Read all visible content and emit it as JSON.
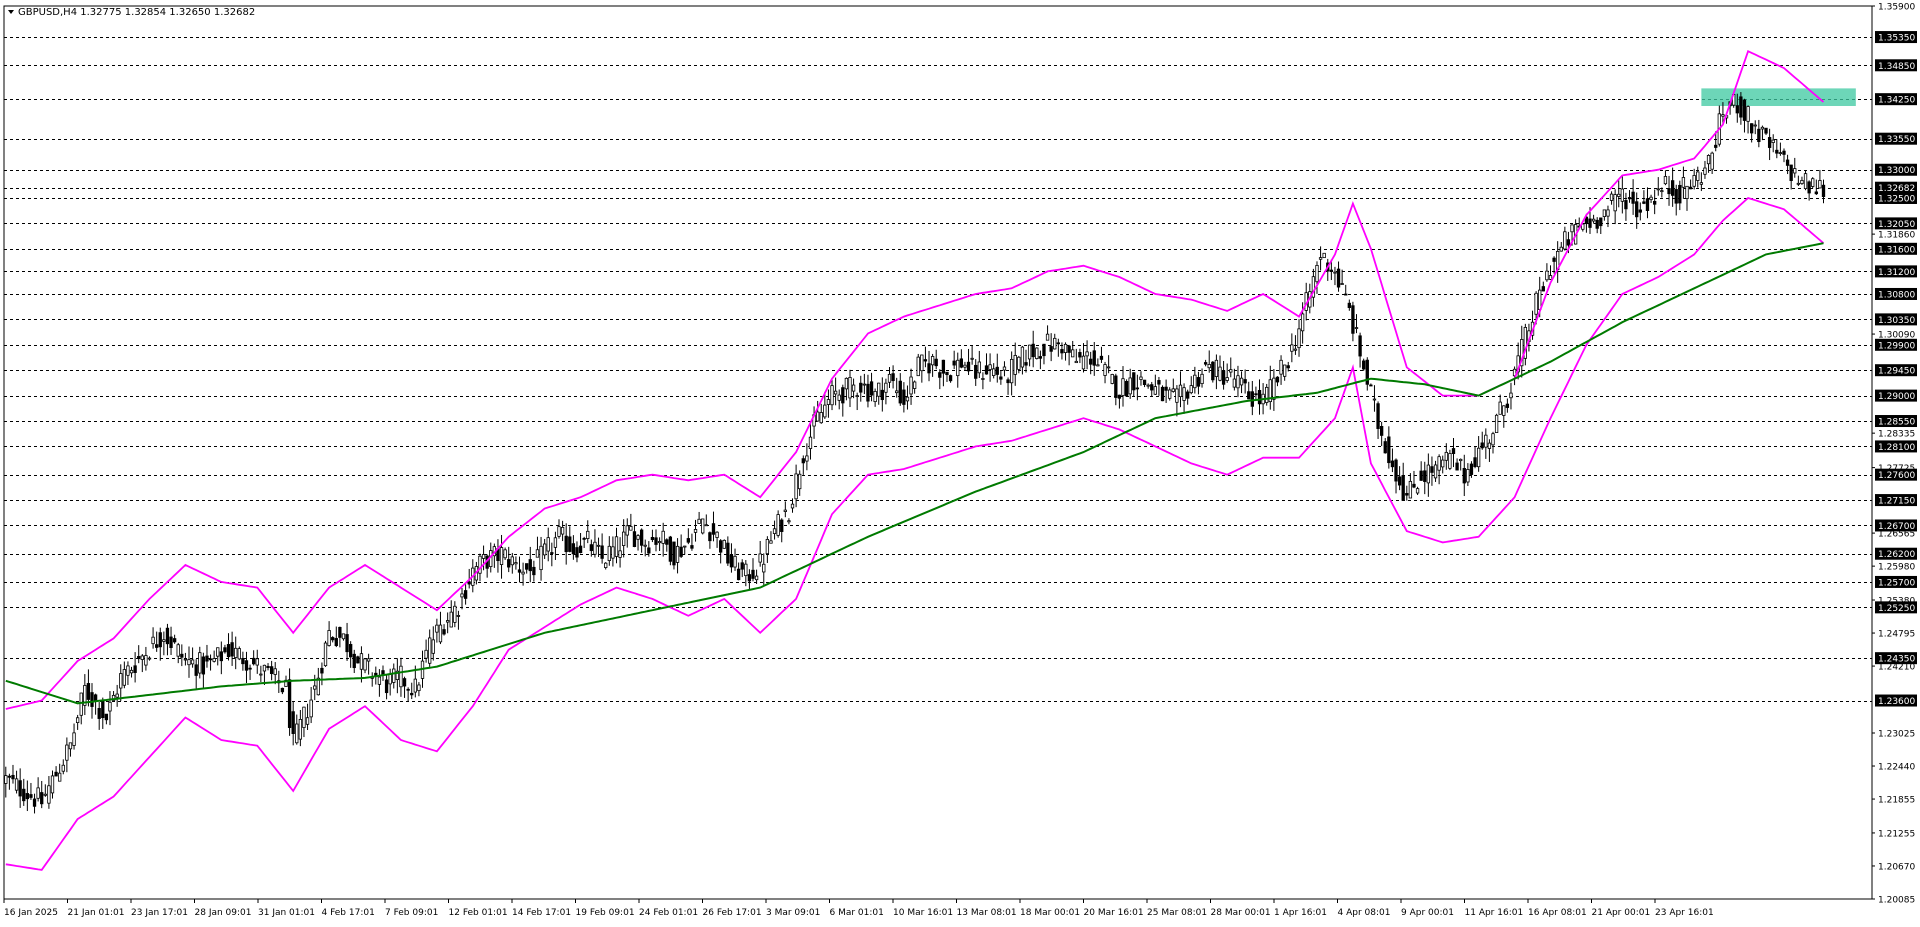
{
  "chart_data": {
    "type": "candlestick",
    "symbol_header": "GBPUSD,H4  1.32775 1.32854 1.32650 1.32682",
    "ylim": [
      1.20085,
      1.359
    ],
    "price_axis_ticks": [
      "1.35900",
      "1.35350",
      "1.34850",
      "1.34250",
      "1.33550",
      "1.33000",
      "1.32682",
      "1.32500",
      "1.32050",
      "1.31860",
      "1.31600",
      "1.31200",
      "1.30800",
      "1.30350",
      "1.30090",
      "1.29900",
      "1.29450",
      "1.29000",
      "1.28550",
      "1.28335",
      "1.28100",
      "1.27725",
      "1.27600",
      "1.27150",
      "1.26700",
      "1.26565",
      "1.26200",
      "1.25980",
      "1.25700",
      "1.25380",
      "1.25250",
      "1.24795",
      "1.24350",
      "1.24210",
      "1.23600",
      "1.23025",
      "1.22440",
      "1.21855",
      "1.21255",
      "1.20670",
      "1.20085"
    ],
    "highlighted_levels": [
      "1.35350",
      "1.34850",
      "1.34250",
      "1.33550",
      "1.33000",
      "1.32682",
      "1.32500",
      "1.32050",
      "1.31600",
      "1.31200",
      "1.30800",
      "1.30350",
      "1.29900",
      "1.29450",
      "1.29000",
      "1.28550",
      "1.28100",
      "1.27600",
      "1.27150",
      "1.26700",
      "1.26200",
      "1.25700",
      "1.25250",
      "1.24350",
      "1.23600"
    ],
    "current_price": "1.32682",
    "time_labels": [
      "16 Jan 2025",
      "21 Jan 01:01",
      "23 Jan 17:01",
      "28 Jan 09:01",
      "31 Jan 01:01",
      "4 Feb 17:01",
      "7 Feb 09:01",
      "12 Feb 01:01",
      "14 Feb 17:01",
      "19 Feb 09:01",
      "24 Feb 01:01",
      "26 Feb 17:01",
      "3 Mar 09:01",
      "6 Mar 01:01",
      "10 Mar 16:01",
      "13 Mar 08:01",
      "18 Mar 00:01",
      "20 Mar 16:01",
      "25 Mar 08:01",
      "28 Mar 00:01",
      "1 Apr 16:01",
      "4 Apr 08:01",
      "9 Apr 00:01",
      "11 Apr 16:01",
      "16 Apr 08:01",
      "21 Apr 00:01",
      "23 Apr 16:01"
    ],
    "close_path": [
      [
        0,
        1.222
      ],
      [
        10,
        1.218
      ],
      [
        18,
        1.228
      ],
      [
        22,
        1.238
      ],
      [
        28,
        1.233
      ],
      [
        32,
        1.24
      ],
      [
        38,
        1.244
      ],
      [
        44,
        1.248
      ],
      [
        50,
        1.243
      ],
      [
        56,
        1.242
      ],
      [
        62,
        1.245
      ],
      [
        68,
        1.243
      ],
      [
        74,
        1.24
      ],
      [
        78,
        1.238
      ],
      [
        80,
        1.228
      ],
      [
        83,
        1.233
      ],
      [
        86,
        1.238
      ],
      [
        90,
        1.248
      ],
      [
        94,
        1.247
      ],
      [
        98,
        1.243
      ],
      [
        102,
        1.241
      ],
      [
        106,
        1.239
      ],
      [
        110,
        1.24
      ],
      [
        114,
        1.238
      ],
      [
        118,
        1.246
      ],
      [
        122,
        1.25
      ],
      [
        126,
        1.253
      ],
      [
        130,
        1.259
      ],
      [
        134,
        1.261
      ],
      [
        138,
        1.262
      ],
      [
        142,
        1.26
      ],
      [
        146,
        1.259
      ],
      [
        150,
        1.262
      ],
      [
        154,
        1.265
      ],
      [
        158,
        1.263
      ],
      [
        162,
        1.264
      ],
      [
        166,
        1.261
      ],
      [
        170,
        1.263
      ],
      [
        174,
        1.266
      ],
      [
        178,
        1.264
      ],
      [
        182,
        1.265
      ],
      [
        186,
        1.262
      ],
      [
        190,
        1.264
      ],
      [
        194,
        1.268
      ],
      [
        198,
        1.265
      ],
      [
        202,
        1.26
      ],
      [
        206,
        1.258
      ],
      [
        210,
        1.26
      ],
      [
        214,
        1.266
      ],
      [
        218,
        1.27
      ],
      [
        222,
        1.28
      ],
      [
        226,
        1.286
      ],
      [
        230,
        1.29
      ],
      [
        234,
        1.291
      ],
      [
        238,
        1.292
      ],
      [
        242,
        1.29
      ],
      [
        246,
        1.293
      ],
      [
        250,
        1.289
      ],
      [
        254,
        1.295
      ],
      [
        258,
        1.296
      ],
      [
        262,
        1.294
      ],
      [
        266,
        1.296
      ],
      [
        270,
        1.294
      ],
      [
        274,
        1.295
      ],
      [
        278,
        1.293
      ],
      [
        282,
        1.296
      ],
      [
        286,
        1.298
      ],
      [
        290,
        1.299
      ],
      [
        294,
        1.299
      ],
      [
        298,
        1.296
      ],
      [
        302,
        1.297
      ],
      [
        306,
        1.294
      ],
      [
        310,
        1.291
      ],
      [
        314,
        1.293
      ],
      [
        318,
        1.292
      ],
      [
        322,
        1.29
      ],
      [
        326,
        1.289
      ],
      [
        330,
        1.292
      ],
      [
        334,
        1.295
      ],
      [
        338,
        1.294
      ],
      [
        342,
        1.293
      ],
      [
        346,
        1.29
      ],
      [
        350,
        1.289
      ],
      [
        354,
        1.293
      ],
      [
        358,
        1.298
      ],
      [
        362,
        1.306
      ],
      [
        366,
        1.315
      ],
      [
        370,
        1.312
      ],
      [
        374,
        1.305
      ],
      [
        378,
        1.295
      ],
      [
        382,
        1.285
      ],
      [
        386,
        1.278
      ],
      [
        390,
        1.272
      ],
      [
        394,
        1.276
      ],
      [
        398,
        1.277
      ],
      [
        402,
        1.279
      ],
      [
        406,
        1.276
      ],
      [
        410,
        1.28
      ],
      [
        414,
        1.284
      ],
      [
        418,
        1.29
      ],
      [
        422,
        1.298
      ],
      [
        426,
        1.306
      ],
      [
        430,
        1.313
      ],
      [
        434,
        1.317
      ],
      [
        438,
        1.32
      ],
      [
        442,
        1.321
      ],
      [
        446,
        1.323
      ],
      [
        450,
        1.326
      ],
      [
        454,
        1.323
      ],
      [
        458,
        1.325
      ],
      [
        462,
        1.327
      ],
      [
        466,
        1.326
      ],
      [
        470,
        1.328
      ],
      [
        474,
        1.331
      ],
      [
        478,
        1.34
      ],
      [
        482,
        1.342
      ],
      [
        486,
        1.338
      ],
      [
        490,
        1.335
      ],
      [
        494,
        1.332
      ],
      [
        498,
        1.329
      ],
      [
        502,
        1.327
      ],
      [
        506,
        1.3268
      ]
    ],
    "sma_path": [
      [
        0,
        1.2395
      ],
      [
        20,
        1.2355
      ],
      [
        40,
        1.237
      ],
      [
        60,
        1.2385
      ],
      [
        80,
        1.2395
      ],
      [
        100,
        1.24
      ],
      [
        120,
        1.242
      ],
      [
        150,
        1.248
      ],
      [
        180,
        1.252
      ],
      [
        210,
        1.256
      ],
      [
        240,
        1.265
      ],
      [
        270,
        1.273
      ],
      [
        300,
        1.28
      ],
      [
        320,
        1.286
      ],
      [
        345,
        1.289
      ],
      [
        365,
        1.2905
      ],
      [
        380,
        1.293
      ],
      [
        395,
        1.292
      ],
      [
        410,
        1.29
      ],
      [
        430,
        1.296
      ],
      [
        450,
        1.303
      ],
      [
        470,
        1.309
      ],
      [
        490,
        1.315
      ],
      [
        506,
        1.317
      ]
    ],
    "band_upper_path": [
      [
        0,
        1.2345
      ],
      [
        10,
        1.236
      ],
      [
        20,
        1.243
      ],
      [
        30,
        1.247
      ],
      [
        40,
        1.254
      ],
      [
        50,
        1.26
      ],
      [
        60,
        1.257
      ],
      [
        70,
        1.256
      ],
      [
        80,
        1.248
      ],
      [
        90,
        1.256
      ],
      [
        100,
        1.26
      ],
      [
        110,
        1.256
      ],
      [
        120,
        1.252
      ],
      [
        130,
        1.258
      ],
      [
        140,
        1.265
      ],
      [
        150,
        1.27
      ],
      [
        160,
        1.272
      ],
      [
        170,
        1.275
      ],
      [
        180,
        1.276
      ],
      [
        190,
        1.275
      ],
      [
        200,
        1.276
      ],
      [
        210,
        1.272
      ],
      [
        220,
        1.28
      ],
      [
        230,
        1.293
      ],
      [
        240,
        1.301
      ],
      [
        250,
        1.304
      ],
      [
        260,
        1.306
      ],
      [
        270,
        1.308
      ],
      [
        280,
        1.309
      ],
      [
        290,
        1.312
      ],
      [
        300,
        1.313
      ],
      [
        310,
        1.311
      ],
      [
        320,
        1.308
      ],
      [
        330,
        1.307
      ],
      [
        340,
        1.305
      ],
      [
        350,
        1.308
      ],
      [
        360,
        1.304
      ],
      [
        370,
        1.315
      ],
      [
        375,
        1.324
      ],
      [
        380,
        1.316
      ],
      [
        390,
        1.295
      ],
      [
        400,
        1.29
      ],
      [
        410,
        1.29
      ],
      [
        420,
        1.293
      ],
      [
        430,
        1.31
      ],
      [
        440,
        1.322
      ],
      [
        450,
        1.329
      ],
      [
        460,
        1.33
      ],
      [
        470,
        1.332
      ],
      [
        478,
        1.338
      ],
      [
        485,
        1.351
      ],
      [
        495,
        1.348
      ],
      [
        506,
        1.342
      ]
    ],
    "band_lower_path": [
      [
        0,
        1.207
      ],
      [
        10,
        1.206
      ],
      [
        20,
        1.215
      ],
      [
        30,
        1.219
      ],
      [
        40,
        1.226
      ],
      [
        50,
        1.233
      ],
      [
        60,
        1.229
      ],
      [
        70,
        1.228
      ],
      [
        80,
        1.22
      ],
      [
        90,
        1.231
      ],
      [
        100,
        1.235
      ],
      [
        110,
        1.229
      ],
      [
        120,
        1.227
      ],
      [
        130,
        1.235
      ],
      [
        140,
        1.245
      ],
      [
        150,
        1.249
      ],
      [
        160,
        1.253
      ],
      [
        170,
        1.256
      ],
      [
        180,
        1.254
      ],
      [
        190,
        1.251
      ],
      [
        200,
        1.254
      ],
      [
        210,
        1.248
      ],
      [
        220,
        1.254
      ],
      [
        230,
        1.269
      ],
      [
        240,
        1.276
      ],
      [
        250,
        1.277
      ],
      [
        260,
        1.279
      ],
      [
        270,
        1.281
      ],
      [
        280,
        1.282
      ],
      [
        290,
        1.284
      ],
      [
        300,
        1.286
      ],
      [
        310,
        1.284
      ],
      [
        320,
        1.281
      ],
      [
        330,
        1.278
      ],
      [
        340,
        1.276
      ],
      [
        350,
        1.279
      ],
      [
        360,
        1.279
      ],
      [
        370,
        1.286
      ],
      [
        375,
        1.295
      ],
      [
        380,
        1.278
      ],
      [
        390,
        1.266
      ],
      [
        400,
        1.264
      ],
      [
        410,
        1.265
      ],
      [
        420,
        1.272
      ],
      [
        430,
        1.286
      ],
      [
        440,
        1.299
      ],
      [
        450,
        1.308
      ],
      [
        460,
        1.311
      ],
      [
        470,
        1.315
      ],
      [
        478,
        1.321
      ],
      [
        485,
        1.325
      ],
      [
        495,
        1.323
      ],
      [
        506,
        1.317
      ]
    ],
    "zone": {
      "from_bar": 472,
      "to_bar": 515,
      "low": 1.342,
      "high": 1.3437
    },
    "colors": {
      "candle": "#000000",
      "bands": "#ff00ff",
      "sma": "#007a00",
      "zone": "#3cc8a0",
      "grid": "#000000",
      "label_bg": "#000000",
      "label_text": "#ffffff"
    }
  }
}
